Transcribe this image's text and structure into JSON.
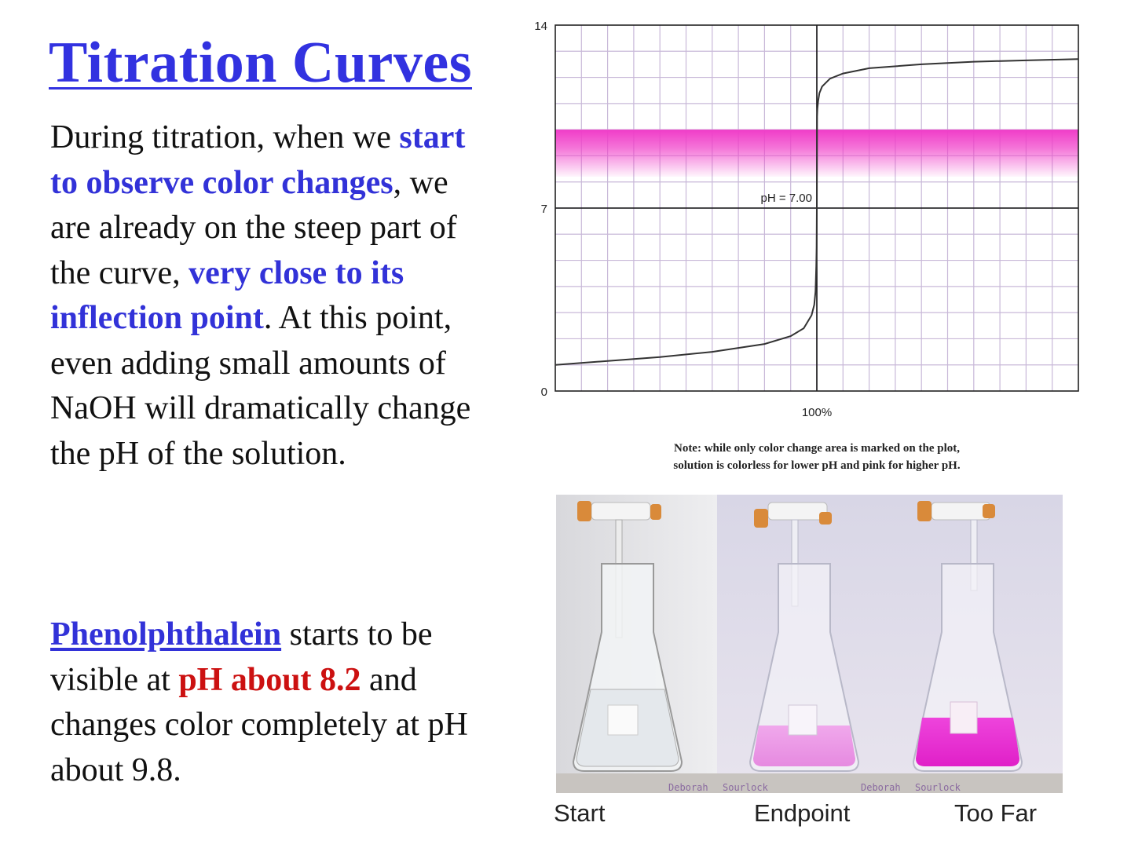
{
  "slide": {
    "title": "Titration Curves",
    "para1": [
      {
        "text": "During titration, when we ",
        "style": "plain"
      },
      {
        "text": "start to observe color changes",
        "style": "blue"
      },
      {
        "text": ", we are already on the steep part of the curve, ",
        "style": "plain"
      },
      {
        "text": "very close to its inflection point",
        "style": "blue"
      },
      {
        "text": ". At this point, even adding small amounts of NaOH will dramatically change the pH of the solution.",
        "style": "plain"
      }
    ],
    "para2": [
      {
        "text": "Phenolphthalein",
        "style": "blue-underline"
      },
      {
        "text": " starts to be visible at ",
        "style": "plain"
      },
      {
        "text": "pH about 8.2",
        "style": "red"
      },
      {
        "text": " and changes color completely at pH about 9.8.",
        "style": "plain"
      }
    ],
    "colors": {
      "title": "#3232e0",
      "emphasis_blue": "#3232d8",
      "emphasis_red": "#cc1111",
      "indicator_band": "#f03cc8",
      "curve": "#333333",
      "grid": "#c8b8d8"
    }
  },
  "chart_data": {
    "type": "line",
    "title": "",
    "xlabel": "",
    "ylabel": "",
    "ylim": [
      0,
      14
    ],
    "xlim": [
      0,
      200
    ],
    "y_ticks": [
      "0",
      "7",
      "14"
    ],
    "x_tick_label": "100%",
    "equivalence_x": 100,
    "grid": true,
    "indicator_band": {
      "from": 8.2,
      "to": 10
    },
    "annotation": "pH = 7.00",
    "series": [
      {
        "x": [
          0,
          20,
          40,
          60,
          80,
          90,
          95,
          98,
          99,
          99.5,
          99.8,
          99.9,
          100,
          100.1,
          100.2,
          100.5,
          101,
          102,
          105,
          110,
          120,
          140,
          160,
          180,
          200
        ],
        "y": [
          1.0,
          1.15,
          1.3,
          1.5,
          1.8,
          2.1,
          2.4,
          2.9,
          3.3,
          3.8,
          4.8,
          5.5,
          7.0,
          10.5,
          10.8,
          11.1,
          11.4,
          11.65,
          11.95,
          12.15,
          12.35,
          12.5,
          12.6,
          12.65,
          12.7
        ]
      }
    ]
  },
  "note": {
    "line1": "Note:  while only color change area is marked on the plot,",
    "line2": "solution is colorless for lower pH and pink for higher pH."
  },
  "photo": {
    "captions": [
      "Start",
      "Endpoint",
      "Too Far"
    ],
    "watermarks": [
      "Deborah",
      "Sourlock",
      "Deborah",
      "Sourlock"
    ]
  }
}
